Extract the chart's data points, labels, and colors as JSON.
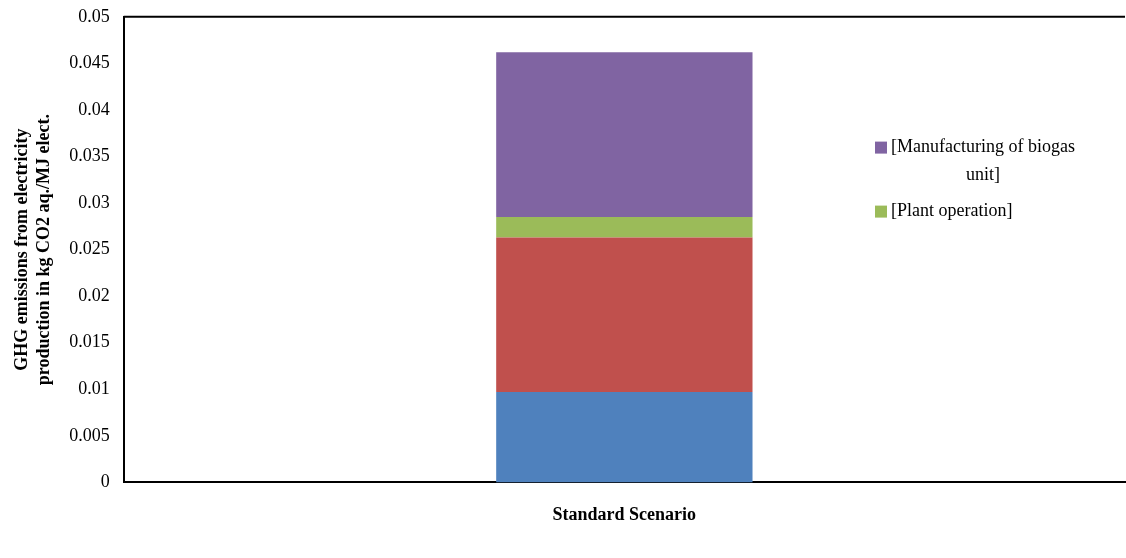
{
  "chart_data": {
    "type": "bar",
    "stacked": true,
    "categories": [
      "Standard Scenario"
    ],
    "ylabel": "GHG emissions from electricity\nproduction in kg CO2 aq./MJ elect.",
    "ylim": [
      0,
      0.05
    ],
    "yticks": [
      0,
      0.005,
      0.01,
      0.015,
      0.02,
      0.025,
      0.03,
      0.035,
      0.04,
      0.045,
      0.05
    ],
    "grid": false,
    "legend": "right",
    "series": [
      {
        "color": "#4f81bd",
        "values": [
          0.0097
        ]
      },
      {
        "color": "#c0504d",
        "values": [
          0.0166
        ]
      },
      {
        "name": "[Plant operation]",
        "color": "#9bbb59",
        "values": [
          0.0022
        ]
      },
      {
        "name": "[Manufacturing of biogas unit]",
        "color": "#8064a2",
        "values": [
          0.0177
        ]
      }
    ]
  }
}
